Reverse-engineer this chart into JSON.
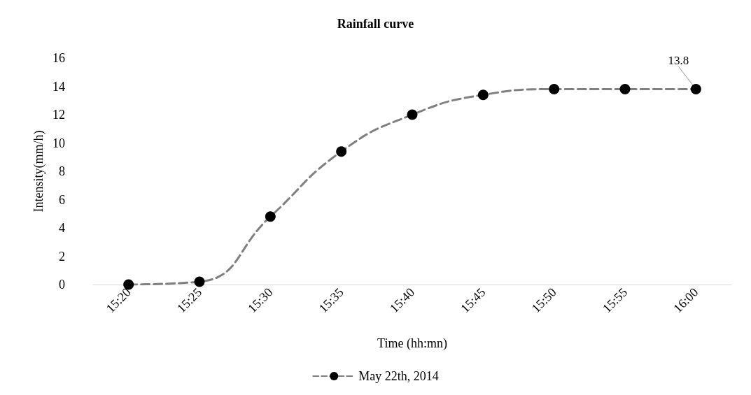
{
  "chart_data": {
    "type": "line",
    "title": "Rainfall curve",
    "xlabel": "Time (hh:mn)",
    "ylabel": "Intensity(mm/h)",
    "categories": [
      "15:20",
      "15:25",
      "15:30",
      "15:35",
      "15:40",
      "15:45",
      "15:50",
      "15:55",
      "16:00"
    ],
    "series": [
      {
        "name": "May 22th, 2014",
        "color": "#808080",
        "values": [
          0,
          0.2,
          4.8,
          9.4,
          12,
          13.4,
          13.8,
          13.8,
          13.8
        ],
        "value_labels": [
          null,
          null,
          null,
          null,
          null,
          null,
          null,
          null,
          "13.8"
        ]
      }
    ],
    "ylim": [
      0,
      16
    ],
    "yticks": [
      0,
      2,
      4,
      6,
      8,
      10,
      12,
      14,
      16
    ],
    "grid": false,
    "legend": "bottom",
    "marker": "circle",
    "line_style": "dashed"
  }
}
